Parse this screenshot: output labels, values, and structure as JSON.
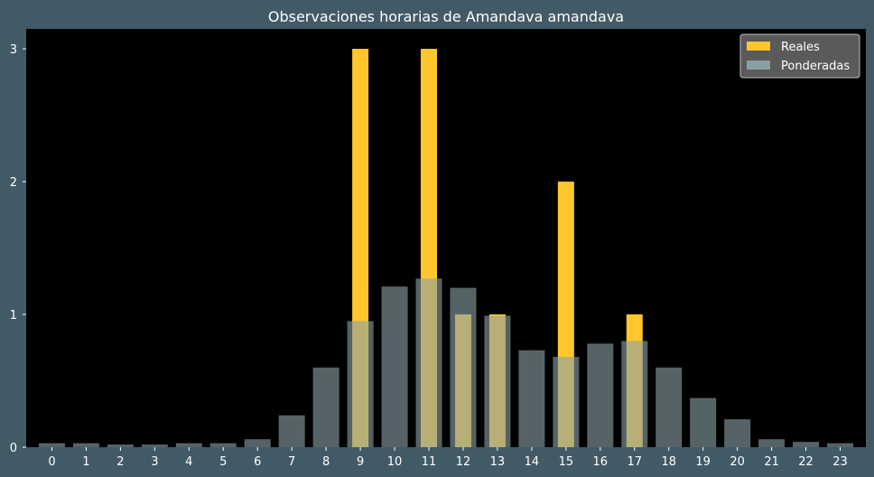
{
  "chart_data": {
    "type": "bar",
    "title": "Observaciones horarias de Amandava amandava",
    "xlabel": "",
    "ylabel": "",
    "categories": [
      "0",
      "1",
      "2",
      "3",
      "4",
      "5",
      "6",
      "7",
      "8",
      "9",
      "10",
      "11",
      "12",
      "13",
      "14",
      "15",
      "16",
      "17",
      "18",
      "19",
      "20",
      "21",
      "22",
      "23"
    ],
    "ylim": [
      0,
      3.15
    ],
    "yticks": [
      "0",
      "1",
      "2",
      "3"
    ],
    "grid": false,
    "legend_position": "top-right",
    "series": [
      {
        "name": "Reales",
        "color": "#ffc72c",
        "values": [
          0,
          0,
          0,
          0,
          0,
          0,
          0,
          0,
          0,
          3,
          0,
          3,
          1,
          1,
          0,
          2,
          0,
          1,
          0,
          0,
          0,
          0,
          0,
          0
        ]
      },
      {
        "name": "Ponderadas",
        "color": "#8a9fa5",
        "values": [
          0.03,
          0.03,
          0.02,
          0.02,
          0.03,
          0.03,
          0.06,
          0.24,
          0.6,
          0.95,
          1.21,
          1.27,
          1.2,
          0.99,
          0.73,
          0.68,
          0.78,
          0.8,
          0.6,
          0.37,
          0.21,
          0.06,
          0.04,
          0.03
        ]
      }
    ]
  }
}
